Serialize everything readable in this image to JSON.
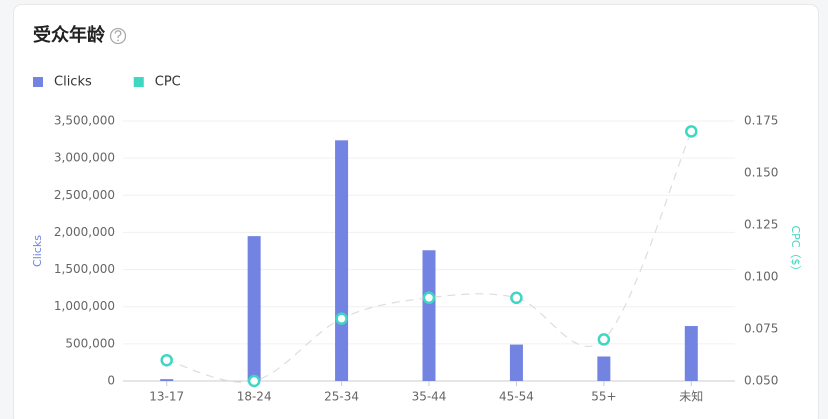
{
  "chart_data": {
    "type": "bar-line",
    "title": "受众年龄",
    "categories": [
      "13-17",
      "18-24",
      "25-34",
      "35-44",
      "45-54",
      "55+",
      "未知"
    ],
    "series": [
      {
        "name": "Clicks",
        "color": "#7383e2",
        "type": "bar",
        "values": [
          25000,
          1950000,
          3240000,
          1760000,
          490000,
          330000,
          740000
        ]
      },
      {
        "name": "CPC",
        "color": "#3fd6c2",
        "type": "line",
        "axis": "y2",
        "values": [
          0.06,
          0.05,
          0.08,
          0.09,
          0.09,
          0.07,
          0.17
        ]
      }
    ],
    "ylabel": "Clicks",
    "y2label": "CPC（$）",
    "ylim": [
      0,
      3500000
    ],
    "yticks": [
      0,
      {
        "value": 500000,
        "label": "500,000"
      },
      {
        "value": 1000000,
        "label": "1,000,000"
      },
      {
        "value": 1500000,
        "label": "1,500,000"
      },
      {
        "value": 2000000,
        "label": "2,000,000"
      },
      {
        "value": 2500000,
        "label": "2,500,000"
      },
      {
        "value": 3000000,
        "label": "3,000,000"
      },
      {
        "value": 3500000,
        "label": "3,500,000"
      }
    ],
    "y2lim": [
      0.05,
      0.175
    ],
    "y2ticks": [
      {
        "value": 0.05,
        "label": "0.050"
      },
      0.075,
      {
        "value": 0.1,
        "label": "0.100"
      },
      0.125,
      {
        "value": 0.15,
        "label": "0.150"
      },
      0.175
    ],
    "grid": true,
    "legend": "top-left"
  }
}
